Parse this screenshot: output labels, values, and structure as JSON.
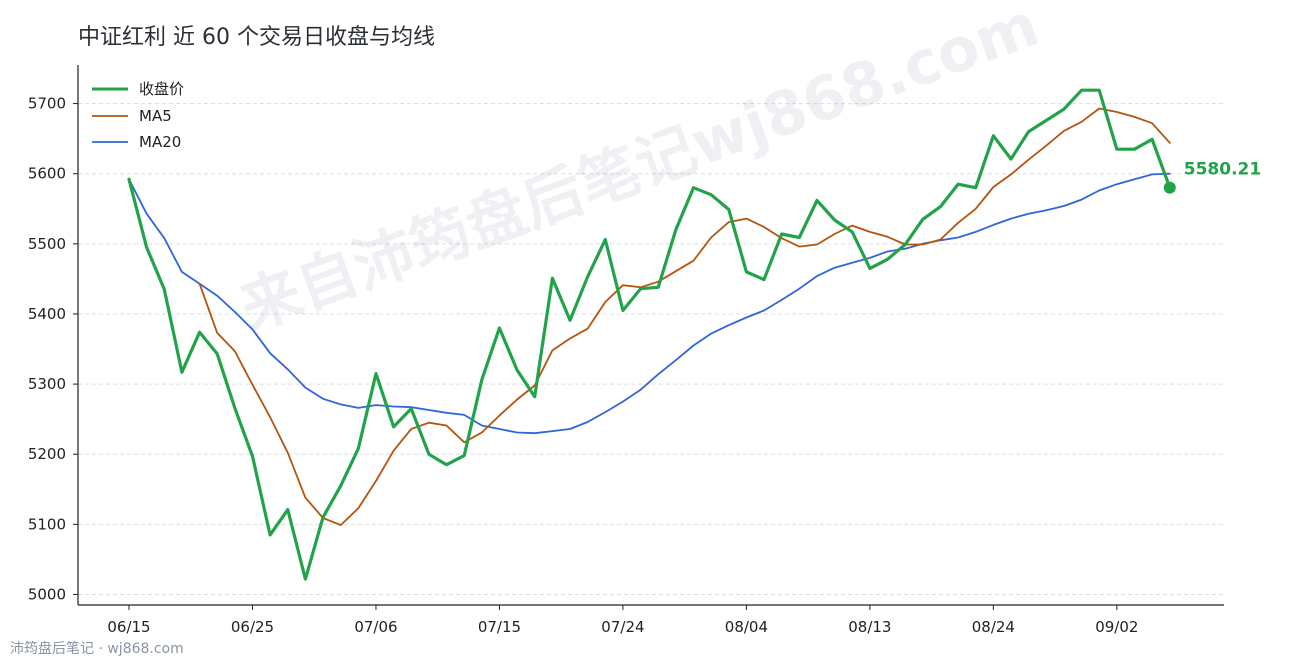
{
  "title": "中证红利 近 60 个交易日收盘与均线",
  "watermark": "来自沛筠盘后笔记wj868.com",
  "footer": "沛筠盘后笔记 · wj868.com",
  "colors": {
    "close": "#22a34a",
    "ma5": "#b5540e",
    "ma20": "#2f66d8",
    "grid": "#dddddd",
    "axis": "#222222"
  },
  "chart_data": {
    "type": "line",
    "title": "中证红利 近 60 个交易日收盘与均线",
    "xlabel": "",
    "ylabel": "",
    "ylim": [
      4985,
      5755
    ],
    "yticks": [
      5000,
      5100,
      5200,
      5300,
      5400,
      5500,
      5600,
      5700
    ],
    "xtick_labels": [
      "06/15",
      "06/25",
      "07/06",
      "07/15",
      "07/24",
      "08/04",
      "08/13",
      "08/24",
      "09/02"
    ],
    "xtick_index": [
      0,
      7,
      14,
      21,
      28,
      35,
      42,
      49,
      56
    ],
    "grid": "horizontal dashed",
    "legend_position": "top-left",
    "last_value_label": "5580.21",
    "series": [
      {
        "name": "收盘价",
        "color": "#22a34a",
        "values": [
          5592,
          5495,
          5435,
          5317,
          5374,
          5343,
          5266,
          5197,
          5085,
          5121,
          5022,
          5110,
          5155,
          5208,
          5315,
          5239,
          5265,
          5200,
          5185,
          5198,
          5306,
          5380,
          5320,
          5282,
          5451,
          5391,
          5453,
          5506,
          5405,
          5436,
          5438,
          5520,
          5580,
          5570,
          5549,
          5460,
          5449,
          5514,
          5509,
          5562,
          5534,
          5517,
          5465,
          5478,
          5499,
          5535,
          5553,
          5585,
          5580,
          5654,
          5621,
          5660,
          5676,
          5692,
          5719,
          5719,
          5635,
          5635,
          5649,
          5580.21
        ]
      },
      {
        "name": "MA5",
        "color": "#b5540e",
        "values": [
          null,
          null,
          null,
          null,
          5443,
          5373,
          5347,
          5299,
          5253,
          5202,
          5138,
          5109,
          5099,
          5123,
          5162,
          5205,
          5236,
          5245,
          5241,
          5217,
          5231,
          5255,
          5278,
          5298,
          5348,
          5365,
          5379,
          5417,
          5441,
          5438,
          5446,
          5461,
          5476,
          5509,
          5531,
          5536,
          5524,
          5508,
          5496,
          5499,
          5514,
          5526,
          5517,
          5510,
          5499,
          5499,
          5506,
          5530,
          5550,
          5581,
          5599,
          5620,
          5640,
          5661,
          5674,
          5693,
          5688,
          5681,
          5672,
          5644
        ]
      },
      {
        "name": "MA20",
        "color": "#2f66d8",
        "values": [
          5592,
          5543,
          5508,
          5460,
          5443,
          5426,
          5403,
          5378,
          5344,
          5321,
          5295,
          5279,
          5271,
          5266,
          5270,
          5268,
          5267,
          5263,
          5259,
          5256,
          5241,
          5236,
          5231,
          5230,
          5233,
          5236,
          5246,
          5260,
          5275,
          5292,
          5314,
          5334,
          5355,
          5372,
          5384,
          5395,
          5405,
          5420,
          5436,
          5454,
          5466,
          5473,
          5480,
          5489,
          5493,
          5500,
          5505,
          5509,
          5517,
          5527,
          5536,
          5543,
          5548,
          5554,
          5563,
          5576,
          5585,
          5592,
          5599,
          5600
        ]
      }
    ]
  }
}
